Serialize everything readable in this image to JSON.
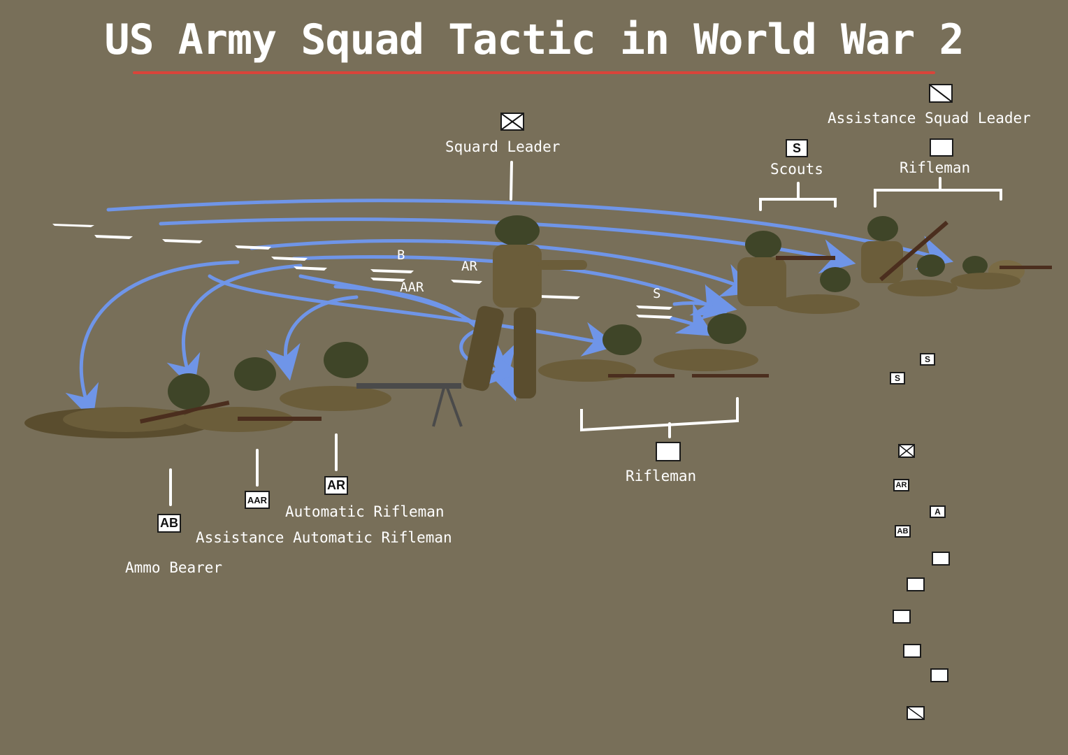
{
  "title": "US Army Squad Tactic in World War 2",
  "colors": {
    "background": "#786f59",
    "title_underline": "#d9443a",
    "movement_arrows": "#6f95e8",
    "text": "#ffffff"
  },
  "role_labels": {
    "squad_leader": "Squard Leader",
    "assistance_squad_leader": "Assistance Squad Leader",
    "scouts": "Scouts",
    "rifleman_right": "Rifleman",
    "rifleman_center": "Rifleman",
    "automatic_rifleman": "Automatic Rifleman",
    "assistance_automatic_rifleman": "Assistance Automatic Rifleman",
    "ammo_bearer": "Ammo Bearer"
  },
  "symbols": {
    "scout": "S",
    "automatic_rifleman": "AR",
    "assistant_automatic_rifleman": "AAR",
    "ammo_bearer": "AB",
    "assistant_single": "A",
    "squad_leader_icon": "envelope-cross-icon",
    "assistant_leader_icon": "diagonal-slash-icon"
  },
  "map_markers": {
    "b": "B",
    "aar": "AAR",
    "ar": "AR",
    "s": "S"
  },
  "column_formation": [
    "S",
    "S",
    "squad-leader",
    "AR",
    "A",
    "AB",
    "rifleman",
    "rifleman",
    "rifleman",
    "rifleman",
    "rifleman",
    "assistant-squad-leader"
  ]
}
